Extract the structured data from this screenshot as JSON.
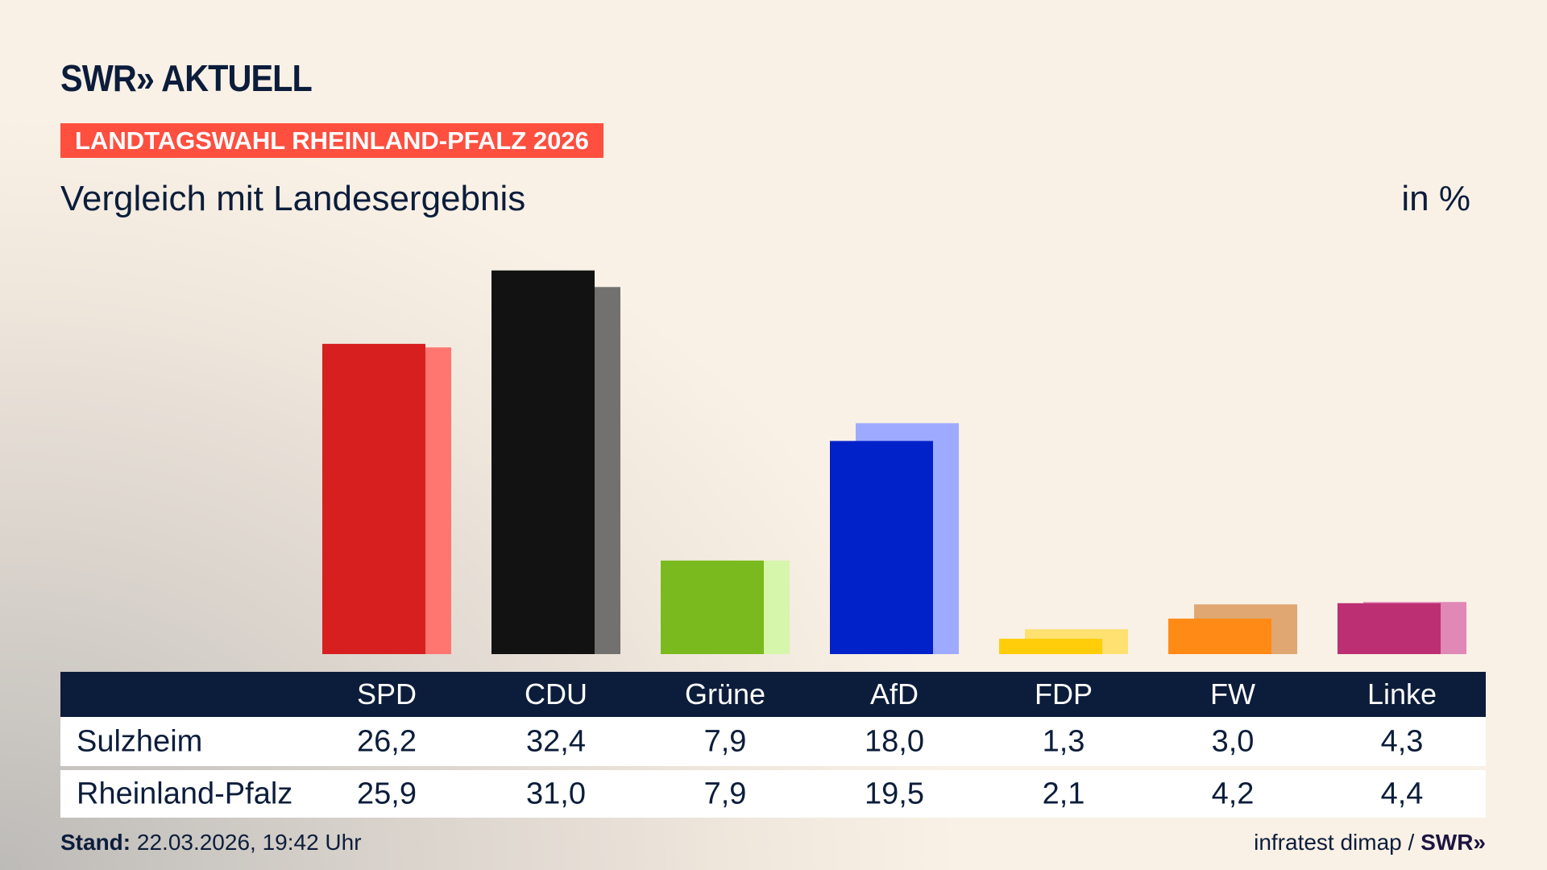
{
  "brand": {
    "logo": "SWR» AKTUELL",
    "footer_logo": "SWR»"
  },
  "banner": "LANDTAGSWAHL RHEINLAND-PFALZ 2026",
  "subtitle": "Vergleich mit Landesergebnis",
  "unit": "in %",
  "table": {
    "headers": [
      "SPD",
      "CDU",
      "Grüne",
      "AfD",
      "FDP",
      "FW",
      "Linke"
    ],
    "rows": [
      {
        "label": "Sulzheim",
        "values": [
          "26,2",
          "32,4",
          "7,9",
          "18,0",
          "1,3",
          "3,0",
          "4,3"
        ]
      },
      {
        "label": "Rheinland-Pfalz",
        "values": [
          "25,9",
          "31,0",
          "7,9",
          "19,5",
          "2,1",
          "4,2",
          "4,4"
        ]
      }
    ]
  },
  "footer": {
    "stand_label": "Stand:",
    "stand_value": "22.03.2026, 19:42 Uhr",
    "source": "infratest dimap /"
  },
  "chart_data": {
    "type": "bar",
    "categories": [
      "SPD",
      "CDU",
      "Grüne",
      "AfD",
      "FDP",
      "FW",
      "Linke"
    ],
    "series": [
      {
        "name": "Sulzheim",
        "values": [
          26.2,
          32.4,
          7.9,
          18.0,
          1.3,
          3.0,
          4.3
        ],
        "colors": [
          "#d71f1f",
          "#121212",
          "#7aba1e",
          "#0022c8",
          "#ffcd0a",
          "#ff8a16",
          "#bc2f72"
        ]
      },
      {
        "name": "Rheinland-Pfalz",
        "values": [
          25.9,
          31.0,
          7.9,
          19.5,
          2.1,
          4.2,
          4.4
        ],
        "colors": [
          "#ff7670",
          "#727170",
          "#d6f6ab",
          "#9daaff",
          "#ffe172",
          "#e0a772",
          "#e088b6"
        ]
      }
    ]
  }
}
